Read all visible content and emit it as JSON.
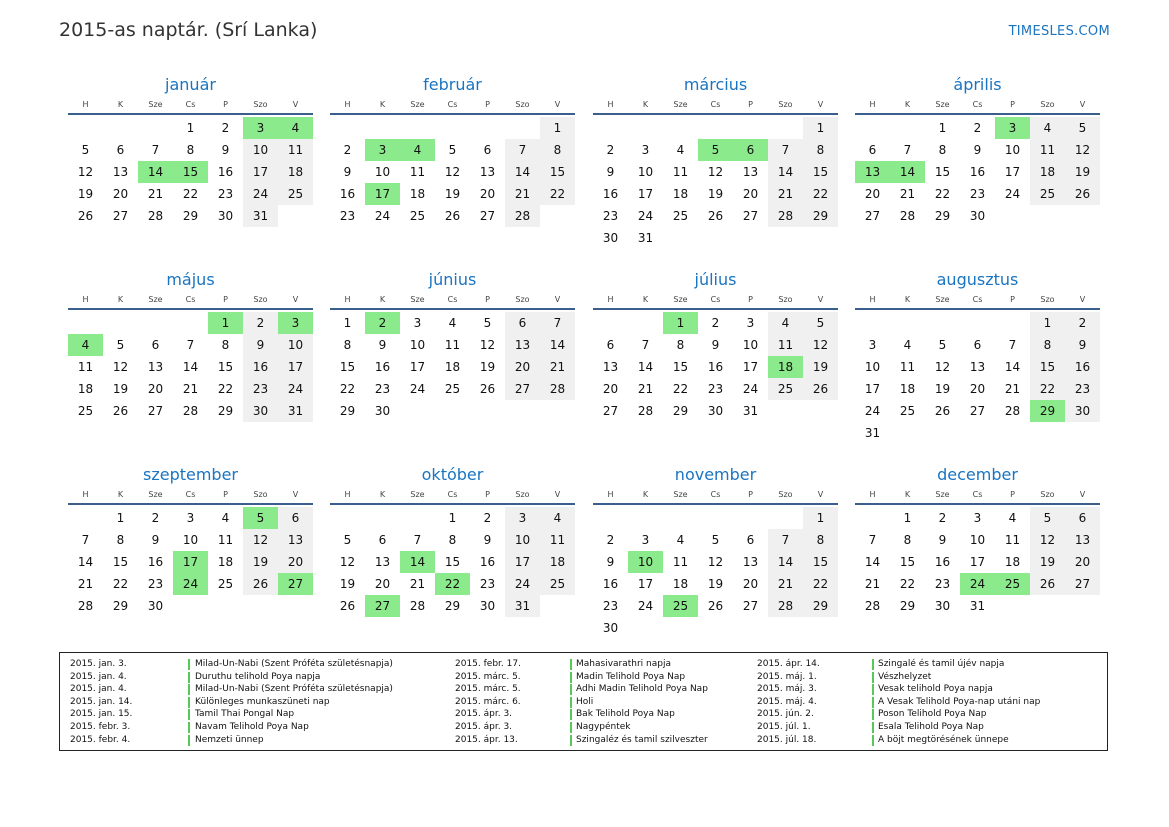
{
  "header": {
    "title": "2015-as naptár. (Srí Lanka)",
    "brand": "TIMESLES.COM"
  },
  "weekdays": [
    "H",
    "K",
    "Sze",
    "Cs",
    "P",
    "Szo",
    "V"
  ],
  "colors": {
    "accent": "#1a74c0",
    "holiday": "#8bea8b",
    "weekend": "#f0f0f0",
    "rule": "#3a5f8c"
  },
  "months": [
    {
      "name": "január",
      "first_weekday": 3,
      "days": 31,
      "holidays": [
        3,
        4,
        14,
        15
      ]
    },
    {
      "name": "február",
      "first_weekday": 6,
      "days": 28,
      "holidays": [
        3,
        4,
        17
      ]
    },
    {
      "name": "március",
      "first_weekday": 6,
      "days": 31,
      "holidays": [
        5,
        6
      ]
    },
    {
      "name": "április",
      "first_weekday": 2,
      "days": 30,
      "holidays": [
        3,
        13,
        14
      ]
    },
    {
      "name": "május",
      "first_weekday": 4,
      "days": 31,
      "holidays": [
        1,
        3,
        4
      ]
    },
    {
      "name": "június",
      "first_weekday": 0,
      "days": 30,
      "holidays": [
        2
      ]
    },
    {
      "name": "július",
      "first_weekday": 2,
      "days": 31,
      "holidays": [
        1,
        18
      ]
    },
    {
      "name": "augusztus",
      "first_weekday": 5,
      "days": 31,
      "holidays": [
        29
      ]
    },
    {
      "name": "szeptember",
      "first_weekday": 1,
      "days": 30,
      "holidays": [
        5,
        17,
        24,
        27
      ]
    },
    {
      "name": "október",
      "first_weekday": 3,
      "days": 31,
      "holidays": [
        14,
        22,
        27
      ]
    },
    {
      "name": "november",
      "first_weekday": 6,
      "days": 30,
      "holidays": [
        10,
        25
      ]
    },
    {
      "name": "december",
      "first_weekday": 1,
      "days": 31,
      "holidays": [
        24,
        25
      ]
    }
  ],
  "holiday_list": [
    [
      {
        "date": "2015. jan. 3.",
        "name": "Milad-Un-Nabi (Szent Próféta születésnapja)"
      },
      {
        "date": "2015. jan. 4.",
        "name": "Duruthu telihold Poya napja"
      },
      {
        "date": "2015. jan. 4.",
        "name": "Milad-Un-Nabi (Szent Próféta születésnapja)"
      },
      {
        "date": "2015. jan. 14.",
        "name": "Különleges munkaszüneti nap"
      },
      {
        "date": "2015. jan. 15.",
        "name": "Tamil Thai Pongal Nap"
      },
      {
        "date": "2015. febr. 3.",
        "name": "Navam Telihold Poya Nap"
      },
      {
        "date": "2015. febr. 4.",
        "name": "Nemzeti ünnep"
      }
    ],
    [
      {
        "date": "2015. febr. 17.",
        "name": "Mahasivarathri napja"
      },
      {
        "date": "2015. márc. 5.",
        "name": "Madin Telihold Poya Nap"
      },
      {
        "date": "2015. márc. 5.",
        "name": "Adhi Madin Telihold Poya Nap"
      },
      {
        "date": "2015. márc. 6.",
        "name": "Holi"
      },
      {
        "date": "2015. ápr. 3.",
        "name": "Bak Telihold Poya Nap"
      },
      {
        "date": "2015. ápr. 3.",
        "name": "Nagypéntek"
      },
      {
        "date": "2015. ápr. 13.",
        "name": "Szingaléz és tamil szilveszter"
      }
    ],
    [
      {
        "date": "2015. ápr. 14.",
        "name": "Szingalé és tamil újév napja"
      },
      {
        "date": "2015. máj. 1.",
        "name": "Vészhelyzet"
      },
      {
        "date": "2015. máj. 3.",
        "name": "Vesak telihold Poya napja"
      },
      {
        "date": "2015. máj. 4.",
        "name": "A Vesak Telihold Poya-nap utáni nap"
      },
      {
        "date": "2015. jún. 2.",
        "name": "Poson Telihold Poya Nap"
      },
      {
        "date": "2015. júl. 1.",
        "name": "Esala Telihold Poya Nap"
      },
      {
        "date": "2015. júl. 18.",
        "name": "A böjt megtörésének ünnepe"
      }
    ]
  ]
}
